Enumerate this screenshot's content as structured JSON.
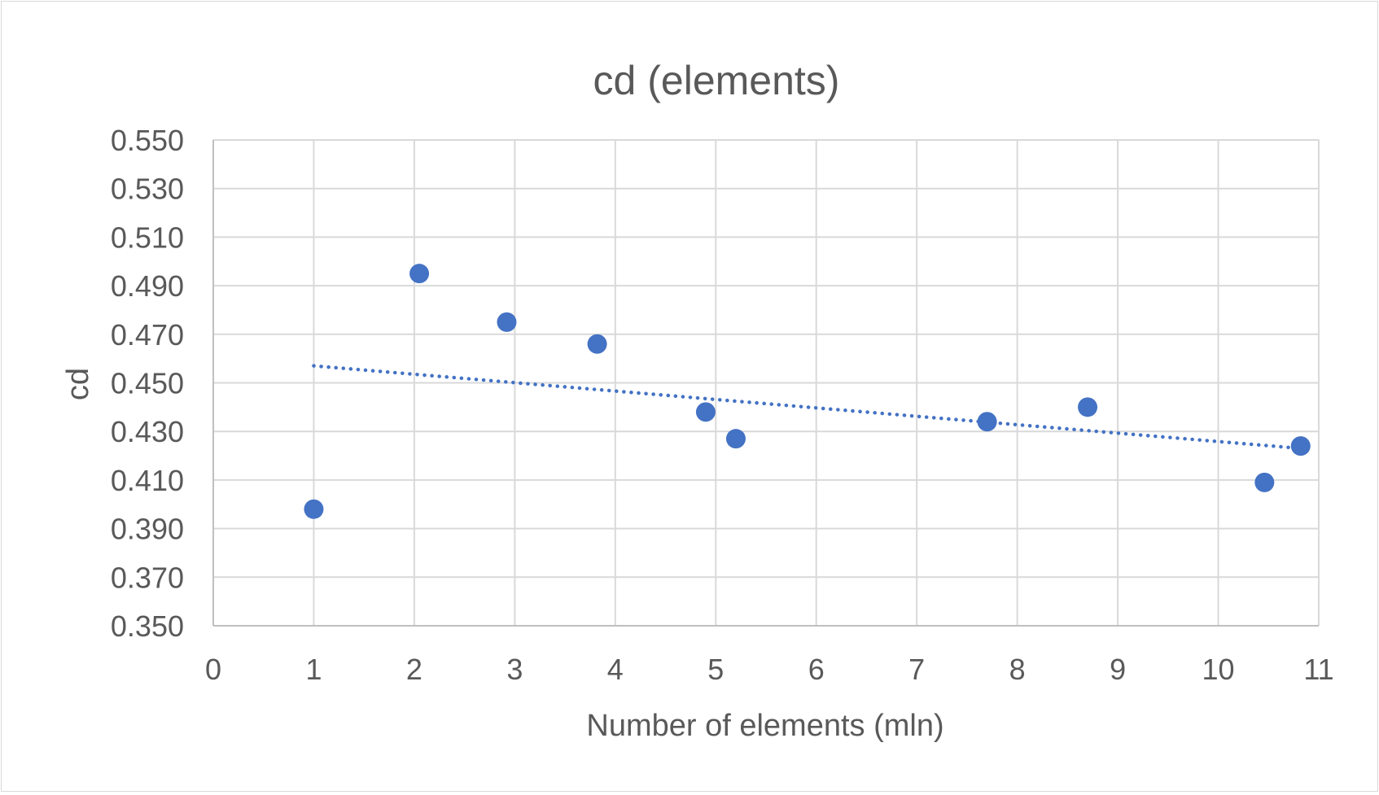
{
  "chart_data": {
    "type": "scatter",
    "title": "cd (elements)",
    "xlabel": "Number of elements (mln)",
    "ylabel": "cd",
    "xlim": [
      0,
      11
    ],
    "ylim": [
      0.35,
      0.55
    ],
    "x_ticks": [
      0,
      1,
      2,
      3,
      4,
      5,
      6,
      7,
      8,
      9,
      10,
      11
    ],
    "y_ticks": [
      0.35,
      0.37,
      0.39,
      0.41,
      0.43,
      0.45,
      0.47,
      0.49,
      0.51,
      0.53,
      0.55
    ],
    "y_tick_labels": [
      "0.350",
      "0.370",
      "0.390",
      "0.410",
      "0.430",
      "0.450",
      "0.470",
      "0.490",
      "0.510",
      "0.530",
      "0.550"
    ],
    "grid": true,
    "legend": "none",
    "series": [
      {
        "name": "cd",
        "x": [
          1.0,
          2.05,
          2.92,
          3.82,
          4.9,
          5.2,
          7.7,
          8.7,
          10.46,
          10.82
        ],
        "y": [
          0.398,
          0.495,
          0.475,
          0.466,
          0.438,
          0.427,
          0.434,
          0.44,
          0.409,
          0.424
        ],
        "color": "#4472c4"
      }
    ],
    "trendline": {
      "type": "linear",
      "style": "dotted",
      "x": [
        1.0,
        10.82
      ],
      "y": [
        0.457,
        0.423
      ],
      "color": "#4472c4"
    }
  }
}
